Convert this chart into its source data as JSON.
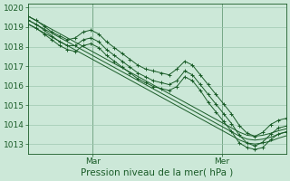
{
  "bg_color": "#cce8d8",
  "grid_color": "#9fc8b0",
  "line_color": "#1a5c28",
  "xlabel": "Pression niveau de la mer( hPa )",
  "xlabel_fontsize": 7.5,
  "tick_fontsize": 6.5,
  "ylim": [
    1012.5,
    1020.2
  ],
  "yticks": [
    1013,
    1014,
    1015,
    1016,
    1017,
    1018,
    1019,
    1020
  ],
  "xlim": [
    0,
    96
  ],
  "vline_positions": [
    24,
    72
  ],
  "vline_labels": [
    "Mar",
    "Mer"
  ],
  "series": {
    "main": [
      1019.35,
      1019.15,
      1018.85,
      1018.55,
      1018.25,
      1018.05,
      1018.05,
      1018.35,
      1018.45,
      1018.25,
      1017.85,
      1017.55,
      1017.25,
      1016.95,
      1016.65,
      1016.45,
      1016.25,
      1016.15,
      1016.05,
      1016.25,
      1016.75,
      1016.55,
      1016.05,
      1015.55,
      1015.05,
      1014.55,
      1014.05,
      1013.45,
      1013.05,
      1012.9,
      1013.1,
      1013.5,
      1013.82,
      1013.92
    ],
    "upper": [
      1019.55,
      1019.35,
      1019.05,
      1018.75,
      1018.55,
      1018.35,
      1018.45,
      1018.75,
      1018.85,
      1018.65,
      1018.25,
      1017.95,
      1017.65,
      1017.35,
      1017.05,
      1016.85,
      1016.75,
      1016.65,
      1016.55,
      1016.85,
      1017.25,
      1017.05,
      1016.55,
      1016.05,
      1015.55,
      1015.05,
      1014.55,
      1013.95,
      1013.55,
      1013.4,
      1013.6,
      1014.0,
      1014.22,
      1014.32
    ],
    "lower": [
      1019.15,
      1018.95,
      1018.65,
      1018.35,
      1018.05,
      1017.85,
      1017.75,
      1018.05,
      1018.15,
      1017.95,
      1017.55,
      1017.25,
      1016.95,
      1016.65,
      1016.35,
      1016.15,
      1015.95,
      1015.85,
      1015.75,
      1015.95,
      1016.45,
      1016.25,
      1015.75,
      1015.15,
      1014.65,
      1014.15,
      1013.65,
      1013.05,
      1012.82,
      1012.72,
      1012.82,
      1013.22,
      1013.52,
      1013.62
    ],
    "trend1": [
      1019.35,
      1019.13,
      1018.91,
      1018.69,
      1018.47,
      1018.25,
      1018.03,
      1017.81,
      1017.59,
      1017.37,
      1017.15,
      1016.93,
      1016.71,
      1016.49,
      1016.27,
      1016.05,
      1015.83,
      1015.61,
      1015.39,
      1015.17,
      1014.95,
      1014.73,
      1014.51,
      1014.29,
      1014.07,
      1013.85,
      1013.63,
      1013.41,
      1013.25,
      1013.2,
      1013.25,
      1013.35,
      1013.5,
      1013.62
    ],
    "trend2": [
      1019.55,
      1019.33,
      1019.11,
      1018.89,
      1018.67,
      1018.45,
      1018.23,
      1018.01,
      1017.79,
      1017.57,
      1017.35,
      1017.13,
      1016.91,
      1016.69,
      1016.47,
      1016.25,
      1016.03,
      1015.81,
      1015.59,
      1015.37,
      1015.15,
      1014.93,
      1014.71,
      1014.49,
      1014.27,
      1014.05,
      1013.83,
      1013.61,
      1013.45,
      1013.4,
      1013.45,
      1013.55,
      1013.68,
      1013.78
    ],
    "trend3": [
      1019.15,
      1018.93,
      1018.71,
      1018.49,
      1018.27,
      1018.05,
      1017.83,
      1017.61,
      1017.39,
      1017.17,
      1016.95,
      1016.73,
      1016.51,
      1016.29,
      1016.07,
      1015.85,
      1015.63,
      1015.41,
      1015.19,
      1014.97,
      1014.75,
      1014.53,
      1014.31,
      1014.09,
      1013.87,
      1013.65,
      1013.43,
      1013.21,
      1013.05,
      1013.0,
      1013.05,
      1013.15,
      1013.3,
      1013.42
    ]
  }
}
